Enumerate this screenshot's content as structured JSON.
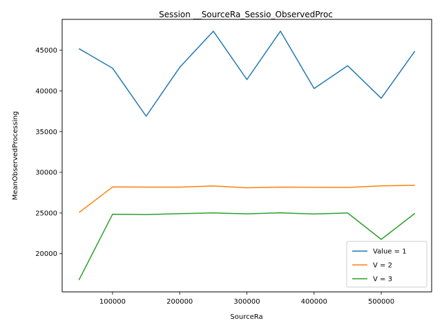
{
  "chart_data": {
    "type": "line",
    "title": "Session __SourceRa_Sessio_ObservedProc",
    "xlabel": "SourceRa",
    "ylabel": "MeanObservedProcessing",
    "xlim": [
      25000,
      575000
    ],
    "ylim": [
      15300,
      48800
    ],
    "xticks": [
      100000,
      200000,
      300000,
      400000,
      500000
    ],
    "yticks": [
      20000,
      25000,
      30000,
      35000,
      40000,
      45000
    ],
    "grid": false,
    "legend_position": "lower-right",
    "x": [
      50000,
      100000,
      150000,
      200000,
      250000,
      300000,
      350000,
      400000,
      450000,
      500000,
      550000
    ],
    "series": [
      {
        "name": "Value = 1",
        "color": "#1f77b4",
        "values": [
          45200,
          42800,
          36900,
          42900,
          47350,
          41400,
          47350,
          40300,
          43100,
          39100,
          44900
        ]
      },
      {
        "name": "V = 2",
        "color": "#ff7f0e",
        "values": [
          25050,
          28200,
          28180,
          28180,
          28320,
          28100,
          28180,
          28160,
          28140,
          28330,
          28400
        ]
      },
      {
        "name": "V = 3",
        "color": "#2ca02c",
        "values": [
          16750,
          24850,
          24800,
          24920,
          25000,
          24900,
          25020,
          24870,
          25000,
          21750,
          24950
        ]
      }
    ]
  }
}
